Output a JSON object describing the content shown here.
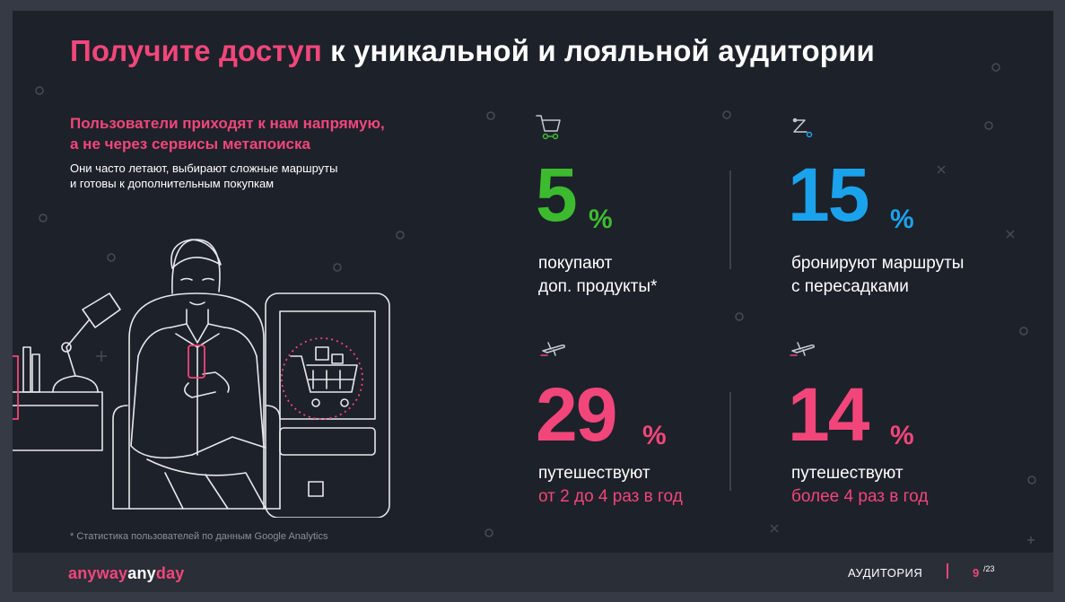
{
  "title": {
    "accent": "Получите доступ",
    "rest": " к уникальной и лояльной аудитории"
  },
  "subtitle": {
    "line1": "Пользователи приходят к нам напрямую,",
    "line2": "а не через сервисы метапоиска"
  },
  "description": {
    "line1": "Они часто летают, выбирают сложные маршруты",
    "line2": "и готовы к дополнительным покупкам"
  },
  "stats": [
    {
      "number": "5",
      "unit": "%",
      "label1": "покупают",
      "label2": "доп. продукты*",
      "icon": "cart-icon"
    },
    {
      "number": "15",
      "unit": "%",
      "label1": "бронируют маршруты",
      "label2": "с пересадками",
      "icon": "route-icon"
    },
    {
      "number": "29",
      "unit": "%",
      "label1": "путешествуют",
      "label2": "от 2 до 4 раз в год",
      "icon": "plane-icon"
    },
    {
      "number": "14",
      "unit": "%",
      "label1": "путешествуют",
      "label2": "более 4 раз в год",
      "icon": "plane-icon"
    }
  ],
  "colors": {
    "accent_pink": "#f2467a",
    "green": "#3dbb2f",
    "blue": "#1aa3ec",
    "background": "#1d212a"
  },
  "footnote": "* Статистика пользователей по данным Google Analytics",
  "footer": {
    "logo_part1": "anyway",
    "logo_part2": "any",
    "logo_part3": "day",
    "section": "АУДИТОРИЯ",
    "page_current": "9",
    "page_total": "/23"
  }
}
